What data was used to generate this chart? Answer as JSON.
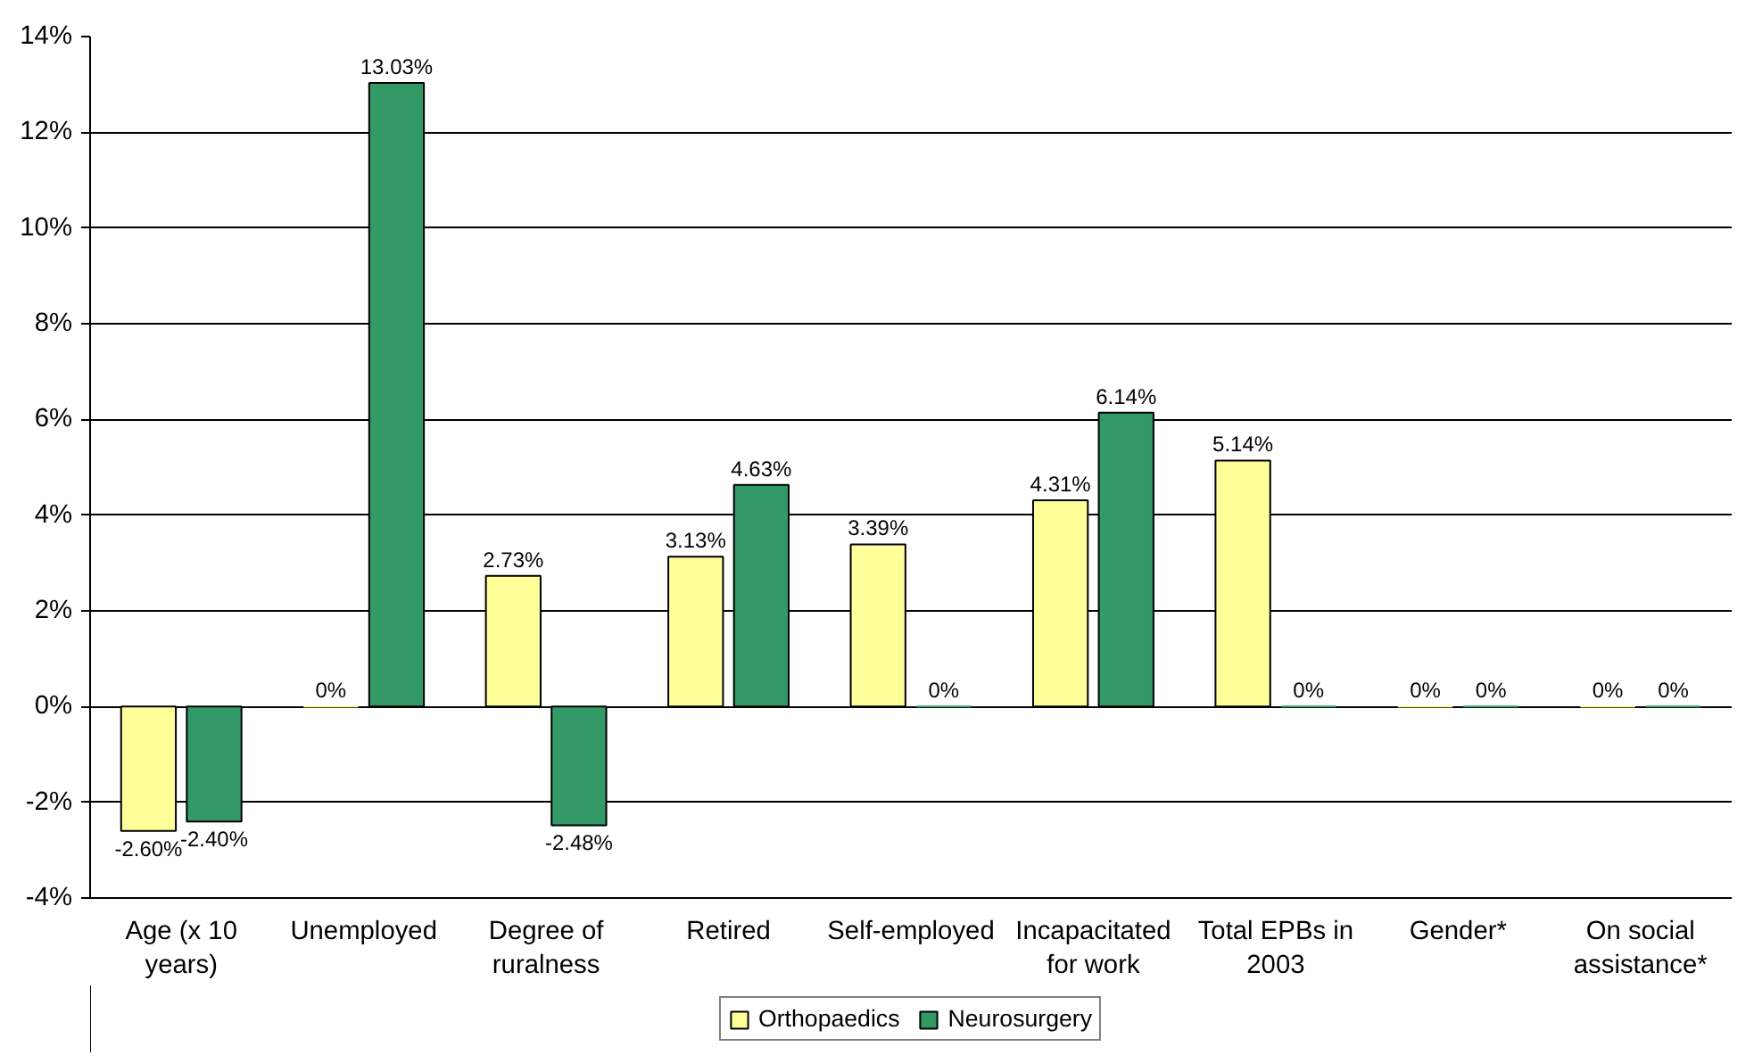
{
  "chart_data": {
    "type": "bar",
    "categories": [
      "Age (x 10 years)",
      "Unemployed",
      "Degree of ruralness",
      "Retired",
      "Self-employed",
      "Incapacitated for work",
      "Total EPBs in 2003",
      "Gender*",
      "On social assistance*"
    ],
    "series": [
      {
        "name": "Orthopaedics",
        "color": "#ffff99",
        "values": [
          -2.6,
          0,
          2.73,
          3.13,
          3.39,
          4.31,
          5.14,
          0,
          0
        ],
        "value_labels": [
          "-2.60%",
          "0%",
          "2.73%",
          "3.13%",
          "3.39%",
          "4.31%",
          "5.14%",
          "0%",
          "0%"
        ]
      },
      {
        "name": "Neurosurgery",
        "color": "#339966",
        "values": [
          -2.4,
          13.03,
          -2.48,
          4.63,
          0,
          6.14,
          0,
          0,
          0
        ],
        "value_labels": [
          "-2.40%",
          "13.03%",
          "-2.48%",
          "4.63%",
          "0%",
          "6.14%",
          "0%",
          "0%",
          "0%"
        ]
      }
    ],
    "ylim": [
      -4,
      14
    ],
    "yticks": [
      {
        "value": -4,
        "label": "-4%"
      },
      {
        "value": -2,
        "label": "-2%"
      },
      {
        "value": 0,
        "label": "0%"
      },
      {
        "value": 2,
        "label": "2%"
      },
      {
        "value": 4,
        "label": "4%"
      },
      {
        "value": 6,
        "label": "6%"
      },
      {
        "value": 8,
        "label": "8%"
      },
      {
        "value": 10,
        "label": "10%"
      },
      {
        "value": 12,
        "label": "12%"
      },
      {
        "value": 14,
        "label": "14%"
      }
    ],
    "grid": "y",
    "legend": "bottom"
  }
}
